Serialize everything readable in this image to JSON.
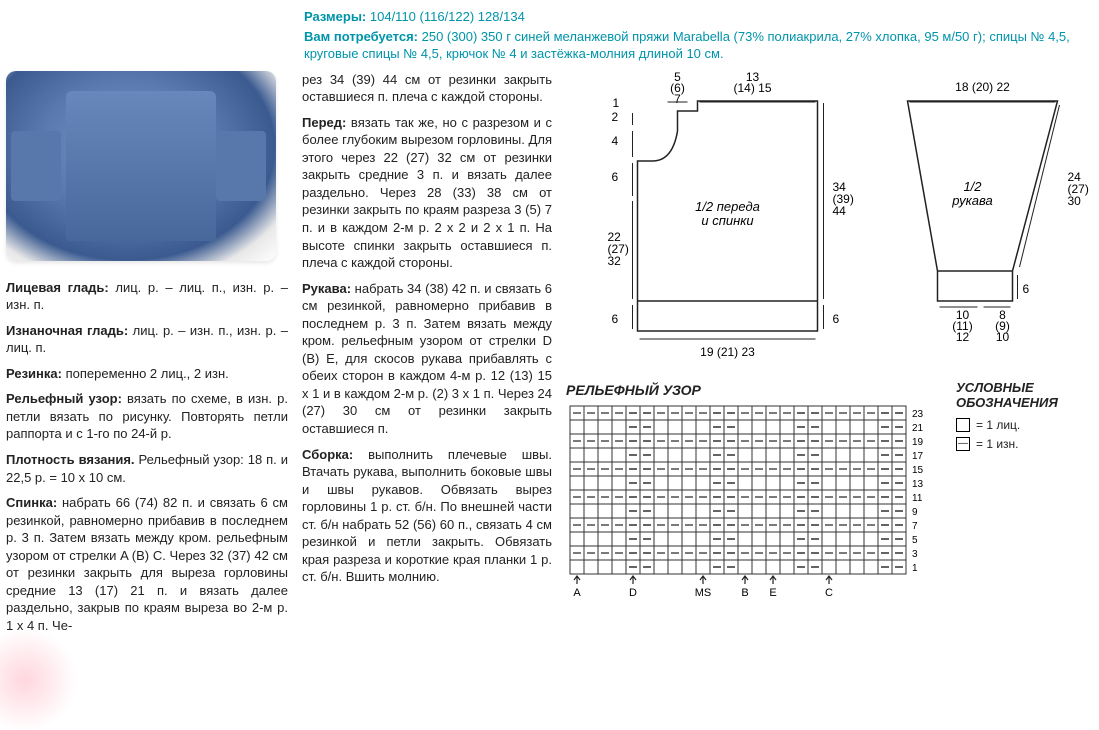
{
  "header": {
    "sizes_label": "Размеры:",
    "sizes_value": "104/110 (116/122) 128/134",
    "need_label": "Вам потребуется:",
    "need_value": "250 (300) 350 г синей меланжевой пряжи Marabella (73% полиакрила, 27% хлопка, 95 м/50 г); спицы № 4,5, круговые спицы № 4,5, крючок № 4 и застёжка-молния длиной 10 см."
  },
  "col_left": {
    "p1": {
      "b": "Лицевая гладь:",
      "t": " лиц. р. – лиц. п., изн. р. – изн. п."
    },
    "p2": {
      "b": "Изнаночная гладь:",
      "t": " лиц. р. – изн. п., изн. р. – лиц. п."
    },
    "p3": {
      "b": "Резинка:",
      "t": " попеременно 2 лиц., 2 изн."
    },
    "p4": {
      "b": "Рельефный узор:",
      "t": " вязать по схеме, в изн. р. петли вязать по рисунку. Повторять петли раппорта и с 1-го по 24-й р."
    },
    "p5": {
      "b": "Плотность вязания.",
      "t": " Рельефный узор: 18 п. и 22,5 р. = 10 х 10 см."
    },
    "p6": {
      "b": "Спинка:",
      "t": " набрать 66 (74) 82 п. и связать 6 см резинкой, равномерно прибавив в последнем р. 3 п. Затем вязать между кром. рельефным узором от стрелки A (В) C. Через 32 (37) 42 см от резинки закрыть для выреза горловины средние 13 (17) 21 п. и вязать далее раздельно, закрыв по краям выреза во 2-м р. 1 х 4 п. Че-"
    }
  },
  "col_mid": {
    "p1": "рез 34 (39) 44 см от резинки закрыть оставшиеся п. плеча с каждой стороны.",
    "p2": {
      "b": "Перед:",
      "t": " вязать так же, но с разрезом и с более глубоким вырезом горловины. Для этого через 22 (27) 32 см от резинки закрыть средние 3 п. и вязать далее раздельно. Через 28 (33) 38 см от резинки закрыть по краям разреза 3 (5) 7 п. и в каждом 2-м р. 2 х 2 и 2 х 1 п. На высоте спинки закрыть оставшиеся п. плеча с каждой стороны."
    },
    "p3": {
      "b": "Рукава:",
      "t": " набрать 34 (38) 42 п. и связать 6 см резинкой, равномерно прибавив в последнем р. 3 п. Затем вязать между кром. рельефным узором от стрелки D (В) E, для скосов рукава прибавлять с обеих сторон в каждом 4-м р. 12 (13) 15 х 1 и в каждом 2-м р. (2) 3 х 1 п. Через 24 (27) 30 см от резинки закрыть оставшиеся п."
    },
    "p4": {
      "b": "Сборка:",
      "t": " выполнить плечевые швы. Втачать рукава, выполнить боковые швы и швы рукавов. Обвязать вырез горловины 1 р. ст. б/н. По внешней части ст. б/н набрать 52 (56) 60 п., связать 4 см резинкой и петли закрыть. Обвязать края разреза и короткие края планки 1 р. ст. б/н. Вшить молнию."
    }
  },
  "schematic": {
    "body": {
      "label": "1/2 переда и спинки",
      "top_left": "1",
      "top_5_6_7": "5\n(6)\n7",
      "top_13_14_15": "13\n(14) 15",
      "left_2": "2",
      "left_4": "4",
      "left_6": "6",
      "left_22_27_32": "22\n(27)\n32",
      "right_34_39_44": "34\n(39)\n44",
      "bot_left_6": "6",
      "bot_right_6": "6",
      "bottom": "19 (21) 23"
    },
    "sleeve": {
      "label": "1/2\nрукава",
      "top": "18 (20) 22",
      "right_24_27_30": "24\n(27)\n30",
      "right_6": "6",
      "bot_10": "10\n(11)\n12",
      "bot_8": "8\n(9)\n10"
    }
  },
  "chart": {
    "title": "РЕЛЬЕФНЫЙ УЗОР",
    "cols": 24,
    "rows": 12,
    "row_labels": [
      "23",
      "21",
      "19",
      "17",
      "15",
      "13",
      "11",
      "9",
      "7",
      "5",
      "3",
      "1"
    ],
    "v_lines": [
      0,
      6,
      12,
      18,
      24
    ],
    "col_marks": [
      {
        "x": 0,
        "t": "A"
      },
      {
        "x": 4,
        "t": "D"
      },
      {
        "x": 9,
        "t": "MS"
      },
      {
        "x": 12,
        "t": "B"
      },
      {
        "x": 14,
        "t": "E"
      },
      {
        "x": 18,
        "t": "C"
      }
    ],
    "legend_title": "УСЛОВНЫЕ ОБОЗНАЧЕНИЯ",
    "legend": [
      {
        "sym": "",
        "t": "= 1 лиц."
      },
      {
        "sym": "—",
        "t": "= 1 изн."
      }
    ]
  }
}
